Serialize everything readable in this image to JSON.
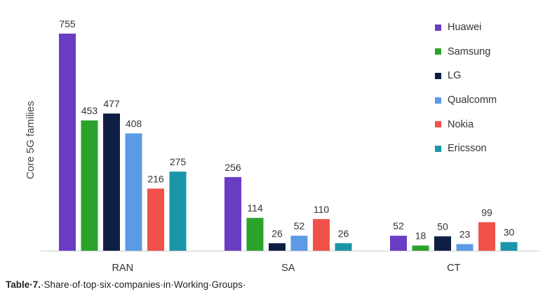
{
  "chart_data": {
    "type": "bar",
    "title": "",
    "xlabel": "",
    "ylabel": "Core 5G families",
    "ylim": [
      0,
      800
    ],
    "grid": false,
    "legend_position": "top-right",
    "categories": [
      "RAN",
      "SA",
      "CT"
    ],
    "series": [
      {
        "name": "Huawei",
        "color": "#6a3cc4",
        "values": [
          755,
          256,
          52
        ]
      },
      {
        "name": "Samsung",
        "color": "#2aa32a",
        "values": [
          453,
          114,
          18
        ]
      },
      {
        "name": "LG",
        "color": "#0e1f43",
        "values": [
          477,
          26,
          50
        ]
      },
      {
        "name": "Qualcomm",
        "color": "#5b9be6",
        "values": [
          408,
          52,
          23
        ]
      },
      {
        "name": "Nokia",
        "color": "#f0524a",
        "values": [
          216,
          110,
          99
        ]
      },
      {
        "name": "Ericsson",
        "color": "#1b96a8",
        "values": [
          275,
          26,
          30
        ]
      }
    ]
  },
  "caption": {
    "label": "Table·7.",
    "text": "·Share·of·top·six·companies·in·Working·Groups·"
  }
}
